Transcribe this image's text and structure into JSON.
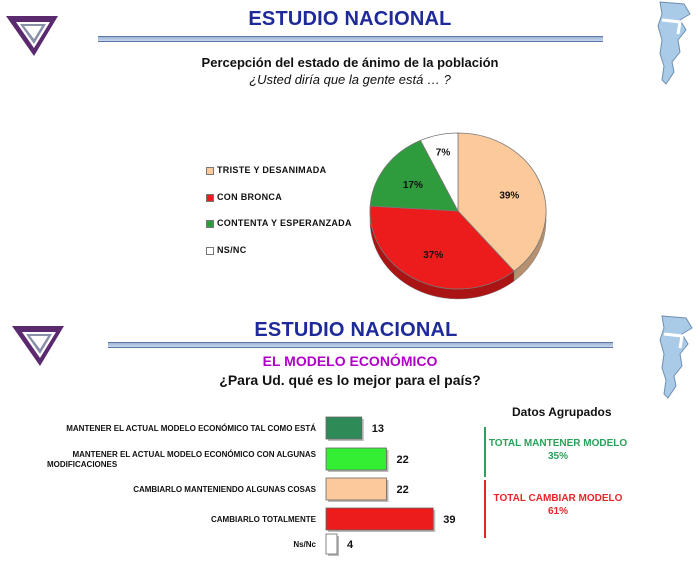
{
  "slide1": {
    "header": "ESTUDIO NACIONAL",
    "title": "Percepción del estado de ánimo de la población",
    "subtitle": "¿Usted diría que la gente está … ?"
  },
  "slide2": {
    "header": "ESTUDIO NACIONAL",
    "section_title": "EL MODELO ECONÓMICO",
    "question": "¿Para Ud. qué es lo mejor para el país?",
    "grouped": {
      "title": "Datos Agrupados",
      "items": [
        {
          "label": "TOTAL MANTENER MODELO",
          "value": "35%",
          "color": "#2aa05a"
        },
        {
          "label": "TOTAL CAMBIAR MODELO",
          "value": "61%",
          "color": "#e8262a"
        }
      ]
    }
  },
  "chart_data": [
    {
      "type": "pie",
      "title": "Percepción del estado de ánimo de la población",
      "subtitle": "¿Usted diría que la gente está … ?",
      "labels": [
        "TRISTE Y DESANIMADA",
        "CON BRONCA",
        "CONTENTA Y ESPERANZADA",
        "NS/NC"
      ],
      "values": [
        39,
        37,
        17,
        7
      ],
      "value_labels": [
        "39%",
        "37%",
        "17%",
        "7%"
      ],
      "colors": [
        "#fcc99a",
        "#ec1c1c",
        "#2e9b3c",
        "#ffffff"
      ],
      "legend": "left"
    },
    {
      "type": "bar",
      "orientation": "horizontal",
      "title": "EL MODELO ECONÓMICO",
      "subtitle": "¿Para Ud. qué es lo mejor para el país?",
      "categories": [
        "MANTENER EL ACTUAL MODELO ECONÓMICO TAL COMO ESTÁ",
        "MANTENER EL ACTUAL MODELO ECONÓMICO CON ALGUNAS MODIFICACIONES",
        "CAMBIARLO MANTENIENDO ALGUNAS COSAS",
        "CAMBIARLO TOTALMENTE",
        "Ns/Nc"
      ],
      "values": [
        13,
        22,
        22,
        39,
        4
      ],
      "colors": [
        "#2e8b57",
        "#33ee33",
        "#fcc99a",
        "#ec1c1c",
        "#ffffff"
      ],
      "grid": false
    }
  ]
}
